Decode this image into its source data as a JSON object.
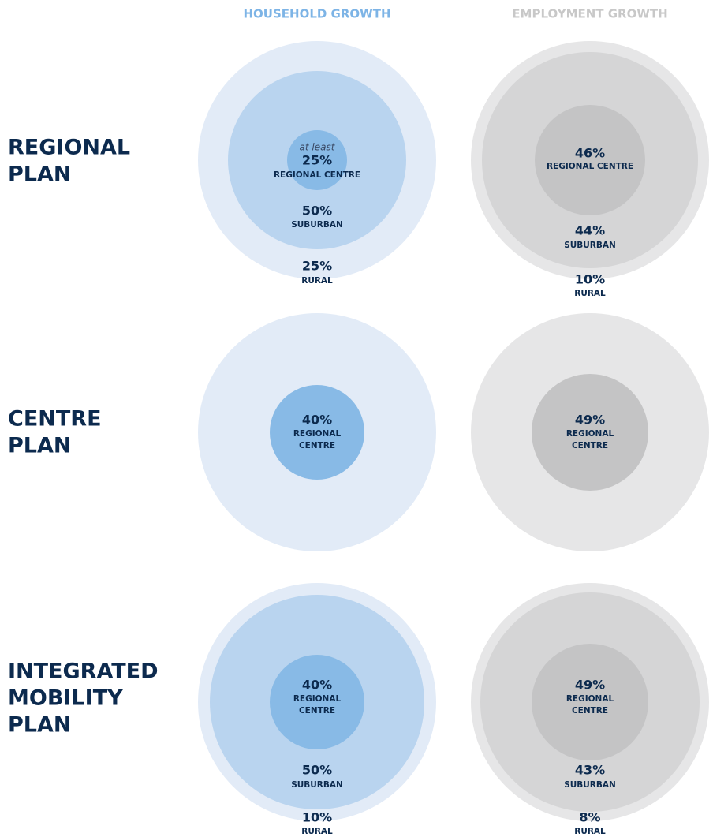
{
  "headers": [
    "HOUSEHOLD GROWTH",
    "EMPLOYMENT GROWTH"
  ],
  "rows": [
    {
      "title": [
        "REGIONAL",
        "PLAN"
      ],
      "cells": [
        {
          "rings": [
            {
              "note": "at least",
              "value": "25%",
              "label": [
                "REGIONAL CENTRE"
              ]
            },
            {
              "value": "50%",
              "label": [
                "SUBURBAN"
              ]
            },
            {
              "value": "25%",
              "label": [
                "RURAL"
              ]
            }
          ]
        },
        {
          "rings": [
            {
              "value": "46%",
              "label": [
                "REGIONAL CENTRE"
              ]
            },
            {
              "value": "44%",
              "label": [
                "SUBURBAN"
              ]
            },
            {
              "value": "10%",
              "label": [
                "RURAL"
              ]
            }
          ]
        }
      ]
    },
    {
      "title": [
        "CENTRE",
        "PLAN"
      ],
      "cells": [
        {
          "rings": [
            {
              "value": "40%",
              "label": [
                "REGIONAL",
                "CENTRE"
              ]
            }
          ]
        },
        {
          "rings": [
            {
              "value": "49%",
              "label": [
                "REGIONAL",
                "CENTRE"
              ]
            }
          ]
        }
      ]
    },
    {
      "title": [
        "INTEGRATED",
        "MOBILITY",
        "PLAN"
      ],
      "cells": [
        {
          "rings": [
            {
              "value": "40%",
              "label": [
                "REGIONAL",
                "CENTRE"
              ]
            },
            {
              "value": "50%",
              "label": [
                "SUBURBAN"
              ]
            },
            {
              "value": "10%",
              "label": [
                "RURAL"
              ]
            }
          ]
        },
        {
          "rings": [
            {
              "value": "49%",
              "label": [
                "REGIONAL",
                "CENTRE"
              ]
            },
            {
              "value": "43%",
              "label": [
                "SUBURBAN"
              ]
            },
            {
              "value": "8%",
              "label": [
                "RURAL"
              ]
            }
          ]
        }
      ]
    }
  ]
}
